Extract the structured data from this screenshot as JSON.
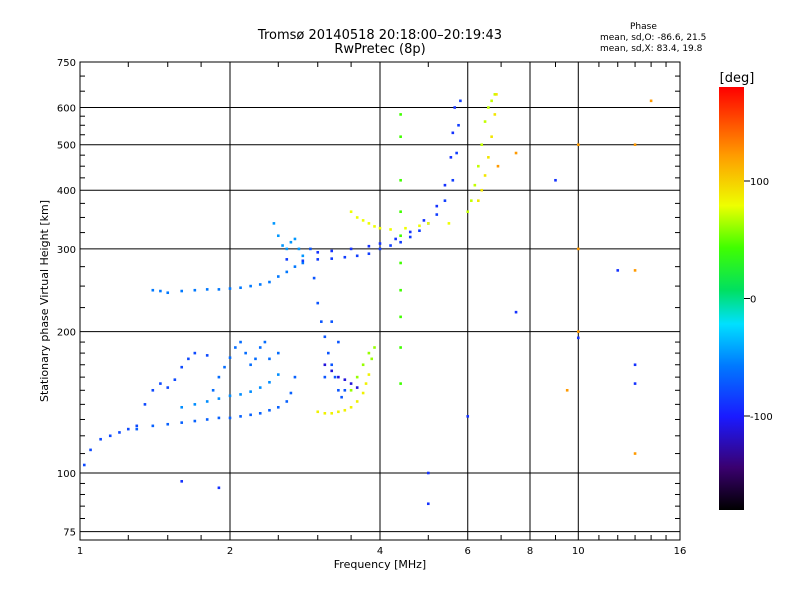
{
  "chart_data": {
    "type": "scatter",
    "title": "Tromsø 20140518 20:18:00–20:19:43",
    "subtitle": "RwPretec (8p)",
    "xlabel": "Frequency [MHz]",
    "ylabel": "Stationary phase Virtual Height [km]",
    "xscale": "log",
    "yscale": "log",
    "xlim": [
      1,
      16
    ],
    "ylim": [
      72,
      750
    ],
    "x_ticks": [
      1,
      2,
      4,
      6,
      8,
      10,
      16
    ],
    "x_tick_labels": [
      "1",
      "2",
      "4",
      "6",
      "8",
      "10",
      "16"
    ],
    "y_ticks": [
      75,
      100,
      200,
      300,
      400,
      500,
      600,
      750
    ],
    "y_tick_labels": [
      "75",
      "100",
      "200",
      "300",
      "400",
      "500",
      "600",
      "750"
    ],
    "grid": true,
    "phase_stats": {
      "heading": "Phase",
      "line_o": "mean, sd,O: -86.6, 21.5",
      "line_x": "mean, sd,X: 83.4, 19.8"
    },
    "colorbar": {
      "label": "[deg]",
      "range": [
        -180,
        180
      ],
      "ticks": [
        100,
        0,
        -100
      ],
      "tick_labels": [
        "100",
        "0",
        "-100"
      ],
      "colormap": "rainbow"
    },
    "series": [
      {
        "phase": -90,
        "points": [
          [
            1.02,
            104
          ],
          [
            1.05,
            112
          ],
          [
            1.1,
            118
          ],
          [
            1.15,
            120
          ],
          [
            1.2,
            122
          ],
          [
            1.25,
            124
          ],
          [
            1.3,
            126
          ],
          [
            1.35,
            140
          ],
          [
            1.4,
            150
          ],
          [
            1.45,
            155
          ],
          [
            1.5,
            152
          ],
          [
            1.55,
            158
          ],
          [
            1.6,
            168
          ],
          [
            1.65,
            175
          ],
          [
            1.7,
            180
          ],
          [
            1.8,
            178
          ]
        ]
      },
      {
        "phase": -80,
        "points": [
          [
            1.3,
            124
          ],
          [
            1.4,
            126
          ],
          [
            1.5,
            127
          ],
          [
            1.6,
            128
          ],
          [
            1.7,
            129
          ],
          [
            1.8,
            130
          ],
          [
            1.9,
            131
          ],
          [
            2.0,
            131
          ],
          [
            2.1,
            132
          ],
          [
            2.2,
            133
          ],
          [
            2.3,
            134
          ],
          [
            2.4,
            136
          ],
          [
            2.5,
            138
          ],
          [
            2.6,
            142
          ],
          [
            2.65,
            148
          ],
          [
            2.7,
            160
          ]
        ]
      },
      {
        "phase": -60,
        "points": [
          [
            1.6,
            138
          ],
          [
            1.7,
            140
          ],
          [
            1.8,
            142
          ],
          [
            1.9,
            144
          ],
          [
            2.0,
            146
          ],
          [
            2.1,
            147
          ],
          [
            2.2,
            149
          ],
          [
            2.3,
            152
          ],
          [
            2.4,
            156
          ],
          [
            2.5,
            162
          ]
        ]
      },
      {
        "phase": -75,
        "points": [
          [
            1.85,
            150
          ],
          [
            1.9,
            160
          ],
          [
            1.95,
            168
          ],
          [
            2.0,
            176
          ],
          [
            2.05,
            185
          ],
          [
            2.1,
            190
          ],
          [
            2.15,
            180
          ],
          [
            2.2,
            170
          ],
          [
            2.25,
            175
          ],
          [
            2.3,
            185
          ],
          [
            2.35,
            190
          ],
          [
            2.4,
            175
          ],
          [
            2.5,
            180
          ]
        ]
      },
      {
        "phase": -70,
        "points": [
          [
            1.4,
            245
          ],
          [
            1.45,
            244
          ],
          [
            1.5,
            242
          ],
          [
            1.6,
            244
          ],
          [
            1.7,
            245
          ],
          [
            1.8,
            246
          ],
          [
            1.9,
            246
          ],
          [
            2.0,
            247
          ],
          [
            2.1,
            248
          ],
          [
            2.2,
            250
          ],
          [
            2.3,
            252
          ],
          [
            2.4,
            255
          ],
          [
            2.5,
            262
          ],
          [
            2.6,
            268
          ],
          [
            2.7,
            275
          ],
          [
            2.8,
            280
          ]
        ]
      },
      {
        "phase": -55,
        "points": [
          [
            2.45,
            340
          ],
          [
            2.5,
            320
          ],
          [
            2.55,
            305
          ],
          [
            2.6,
            300
          ],
          [
            2.65,
            310
          ],
          [
            2.7,
            315
          ],
          [
            2.75,
            300
          ],
          [
            2.8,
            290
          ]
        ]
      },
      {
        "phase": -95,
        "points": [
          [
            2.6,
            285
          ],
          [
            2.8,
            283
          ],
          [
            3.0,
            285
          ],
          [
            3.2,
            286
          ],
          [
            3.4,
            288
          ],
          [
            3.6,
            290
          ],
          [
            3.8,
            293
          ],
          [
            4.0,
            300
          ],
          [
            4.2,
            305
          ],
          [
            4.4,
            310
          ],
          [
            4.6,
            318
          ],
          [
            4.8,
            328
          ],
          [
            5.0,
            340
          ],
          [
            5.2,
            355
          ],
          [
            5.4,
            380
          ],
          [
            5.6,
            420
          ],
          [
            5.7,
            480
          ],
          [
            5.75,
            550
          ],
          [
            5.8,
            620
          ]
        ]
      },
      {
        "phase": -100,
        "points": [
          [
            3.0,
            295
          ],
          [
            3.2,
            297
          ],
          [
            3.5,
            300
          ],
          [
            3.8,
            304
          ],
          [
            4.0,
            308
          ],
          [
            4.3,
            315
          ],
          [
            4.6,
            326
          ],
          [
            4.9,
            345
          ],
          [
            5.2,
            370
          ],
          [
            5.4,
            410
          ],
          [
            5.55,
            470
          ],
          [
            5.6,
            530
          ],
          [
            5.65,
            600
          ]
        ]
      },
      {
        "phase": -85,
        "points": [
          [
            2.9,
            300
          ],
          [
            2.95,
            260
          ],
          [
            3.0,
            230
          ],
          [
            3.05,
            210
          ],
          [
            3.1,
            195
          ],
          [
            3.15,
            180
          ],
          [
            3.2,
            170
          ],
          [
            3.25,
            160
          ],
          [
            3.3,
            150
          ],
          [
            3.35,
            145
          ],
          [
            3.4,
            150
          ],
          [
            3.1,
            160
          ],
          [
            3.2,
            210
          ],
          [
            3.3,
            190
          ]
        ]
      },
      {
        "phase": -120,
        "points": [
          [
            3.1,
            170
          ],
          [
            3.2,
            165
          ],
          [
            3.3,
            160
          ],
          [
            3.4,
            158
          ],
          [
            3.5,
            155
          ],
          [
            3.6,
            152
          ]
        ]
      },
      {
        "phase": 80,
        "points": [
          [
            3.5,
            360
          ],
          [
            3.6,
            350
          ],
          [
            3.7,
            345
          ],
          [
            3.8,
            340
          ],
          [
            3.9,
            335
          ],
          [
            4.0,
            332
          ],
          [
            4.2,
            330
          ],
          [
            4.5,
            332
          ],
          [
            4.8,
            336
          ],
          [
            5.0,
            340
          ],
          [
            5.5,
            340
          ]
        ]
      },
      {
        "phase": 70,
        "points": [
          [
            6.0,
            360
          ],
          [
            6.1,
            380
          ],
          [
            6.2,
            410
          ],
          [
            6.3,
            450
          ],
          [
            6.4,
            500
          ],
          [
            6.5,
            560
          ],
          [
            6.6,
            600
          ],
          [
            6.7,
            620
          ],
          [
            6.8,
            640
          ]
        ]
      },
      {
        "phase": 90,
        "points": [
          [
            6.3,
            380
          ],
          [
            6.4,
            400
          ],
          [
            6.5,
            430
          ],
          [
            6.6,
            470
          ],
          [
            6.7,
            520
          ],
          [
            6.8,
            580
          ],
          [
            6.85,
            640
          ]
        ]
      },
      {
        "phase": 85,
        "points": [
          [
            3.0,
            135
          ],
          [
            3.1,
            134
          ],
          [
            3.2,
            134
          ],
          [
            3.3,
            135
          ],
          [
            3.4,
            136
          ],
          [
            3.5,
            138
          ],
          [
            3.6,
            142
          ],
          [
            3.7,
            148
          ],
          [
            3.75,
            155
          ],
          [
            3.8,
            162
          ]
        ]
      },
      {
        "phase": 60,
        "points": [
          [
            3.5,
            150
          ],
          [
            3.6,
            160
          ],
          [
            3.7,
            170
          ],
          [
            3.8,
            180
          ],
          [
            3.9,
            185
          ],
          [
            3.85,
            175
          ]
        ]
      },
      {
        "phase": 40,
        "points": [
          [
            4.4,
            155
          ],
          [
            4.4,
            185
          ],
          [
            4.4,
            215
          ],
          [
            4.4,
            245
          ],
          [
            4.4,
            280
          ],
          [
            4.4,
            320
          ],
          [
            4.4,
            360
          ],
          [
            4.4,
            420
          ],
          [
            4.4,
            520
          ],
          [
            4.4,
            580
          ]
        ]
      },
      {
        "phase": 120,
        "points": [
          [
            6.9,
            450
          ],
          [
            7.5,
            480
          ],
          [
            10.0,
            300
          ],
          [
            10.0,
            200
          ],
          [
            10.0,
            500
          ],
          [
            13.0,
            500
          ],
          [
            13.0,
            270
          ],
          [
            14.0,
            620
          ],
          [
            13.0,
            110
          ],
          [
            9.5,
            150
          ]
        ]
      },
      {
        "phase": -100,
        "points": [
          [
            1.6,
            96
          ],
          [
            1.9,
            93
          ],
          [
            5.0,
            86
          ],
          [
            6.0,
            132
          ],
          [
            7.5,
            220
          ],
          [
            9.0,
            420
          ],
          [
            10.0,
            194
          ],
          [
            12.0,
            270
          ],
          [
            13.0,
            170
          ],
          [
            13.0,
            155
          ],
          [
            5.0,
            100
          ]
        ]
      }
    ]
  }
}
